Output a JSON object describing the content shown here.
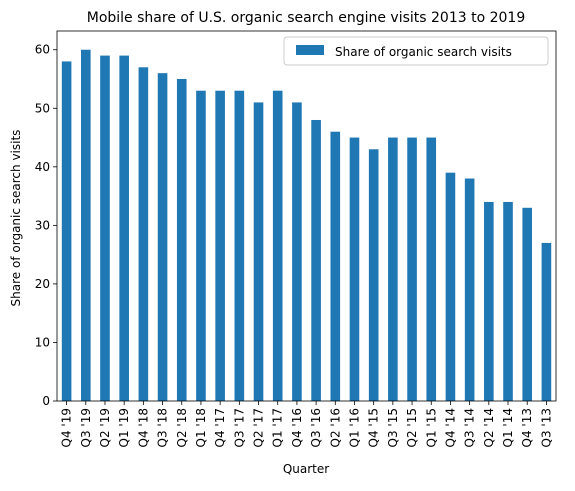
{
  "chart_data": {
    "type": "bar",
    "title": "Mobile share of U.S. organic search engine visits 2013 to 2019",
    "xlabel": "Quarter",
    "ylabel": "Share of organic search visits",
    "ylim": [
      0,
      63.2
    ],
    "yticks": [
      0,
      10,
      20,
      30,
      40,
      50,
      60
    ],
    "grid": false,
    "legend_position": "top-right",
    "bar_color": "#1f77b4",
    "categories": [
      "Q4 '19",
      "Q3 '19",
      "Q2 '19",
      "Q1 '19",
      "Q4 '18",
      "Q3 '18",
      "Q2 '18",
      "Q1 '18",
      "Q4 '17",
      "Q3 '17",
      "Q2 '17",
      "Q1 '17",
      "Q4 '16",
      "Q3 '16",
      "Q2 '16",
      "Q1 '16",
      "Q4 '15",
      "Q3 '15",
      "Q2 '15",
      "Q1 '15",
      "Q4 '14",
      "Q3 '14",
      "Q2 '14",
      "Q1 '14",
      "Q4 '13",
      "Q3 '13"
    ],
    "series": [
      {
        "name": "Share of organic search visits",
        "values": [
          58,
          60,
          59,
          59,
          57,
          56,
          55,
          53,
          53,
          53,
          51,
          53,
          51,
          48,
          46,
          45,
          43,
          45,
          45,
          45,
          39,
          38,
          34,
          34,
          33,
          27
        ]
      }
    ]
  }
}
